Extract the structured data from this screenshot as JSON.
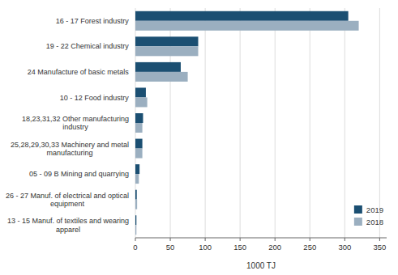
{
  "chart_data": {
    "type": "bar",
    "orientation": "horizontal",
    "categories": [
      "13 - 15 Manuf. of textiles and wearing\napparel",
      "26 - 27 Manuf. of electrical and optical\nequipment",
      "05 - 09 B Mining and quarrying",
      "25,28,29,30,33 Machinery and metal\nmanufacturing",
      "18,23,31,32 Other manufacturing\nindustry",
      "10 - 12 Food industry",
      "24 Manufacture of basic metals",
      "19 - 22 Chemical industry",
      "16 - 17 Forest industry"
    ],
    "series": [
      {
        "name": "2019",
        "color": "#1b4f72",
        "values": [
          1.5,
          2.0,
          6.0,
          10.0,
          11.0,
          15.0,
          65.0,
          90.0,
          305.0
        ]
      },
      {
        "name": "2018",
        "color": "#9bafc0",
        "values": [
          1.5,
          2.5,
          5.0,
          10.0,
          10.0,
          17.0,
          75.0,
          90.0,
          320.0
        ]
      }
    ],
    "xlabel": "1000 TJ",
    "xlim": [
      0,
      360
    ],
    "xticks": [
      0,
      50,
      100,
      150,
      200,
      250,
      300,
      350
    ],
    "grid": true,
    "legend": "lower right"
  }
}
